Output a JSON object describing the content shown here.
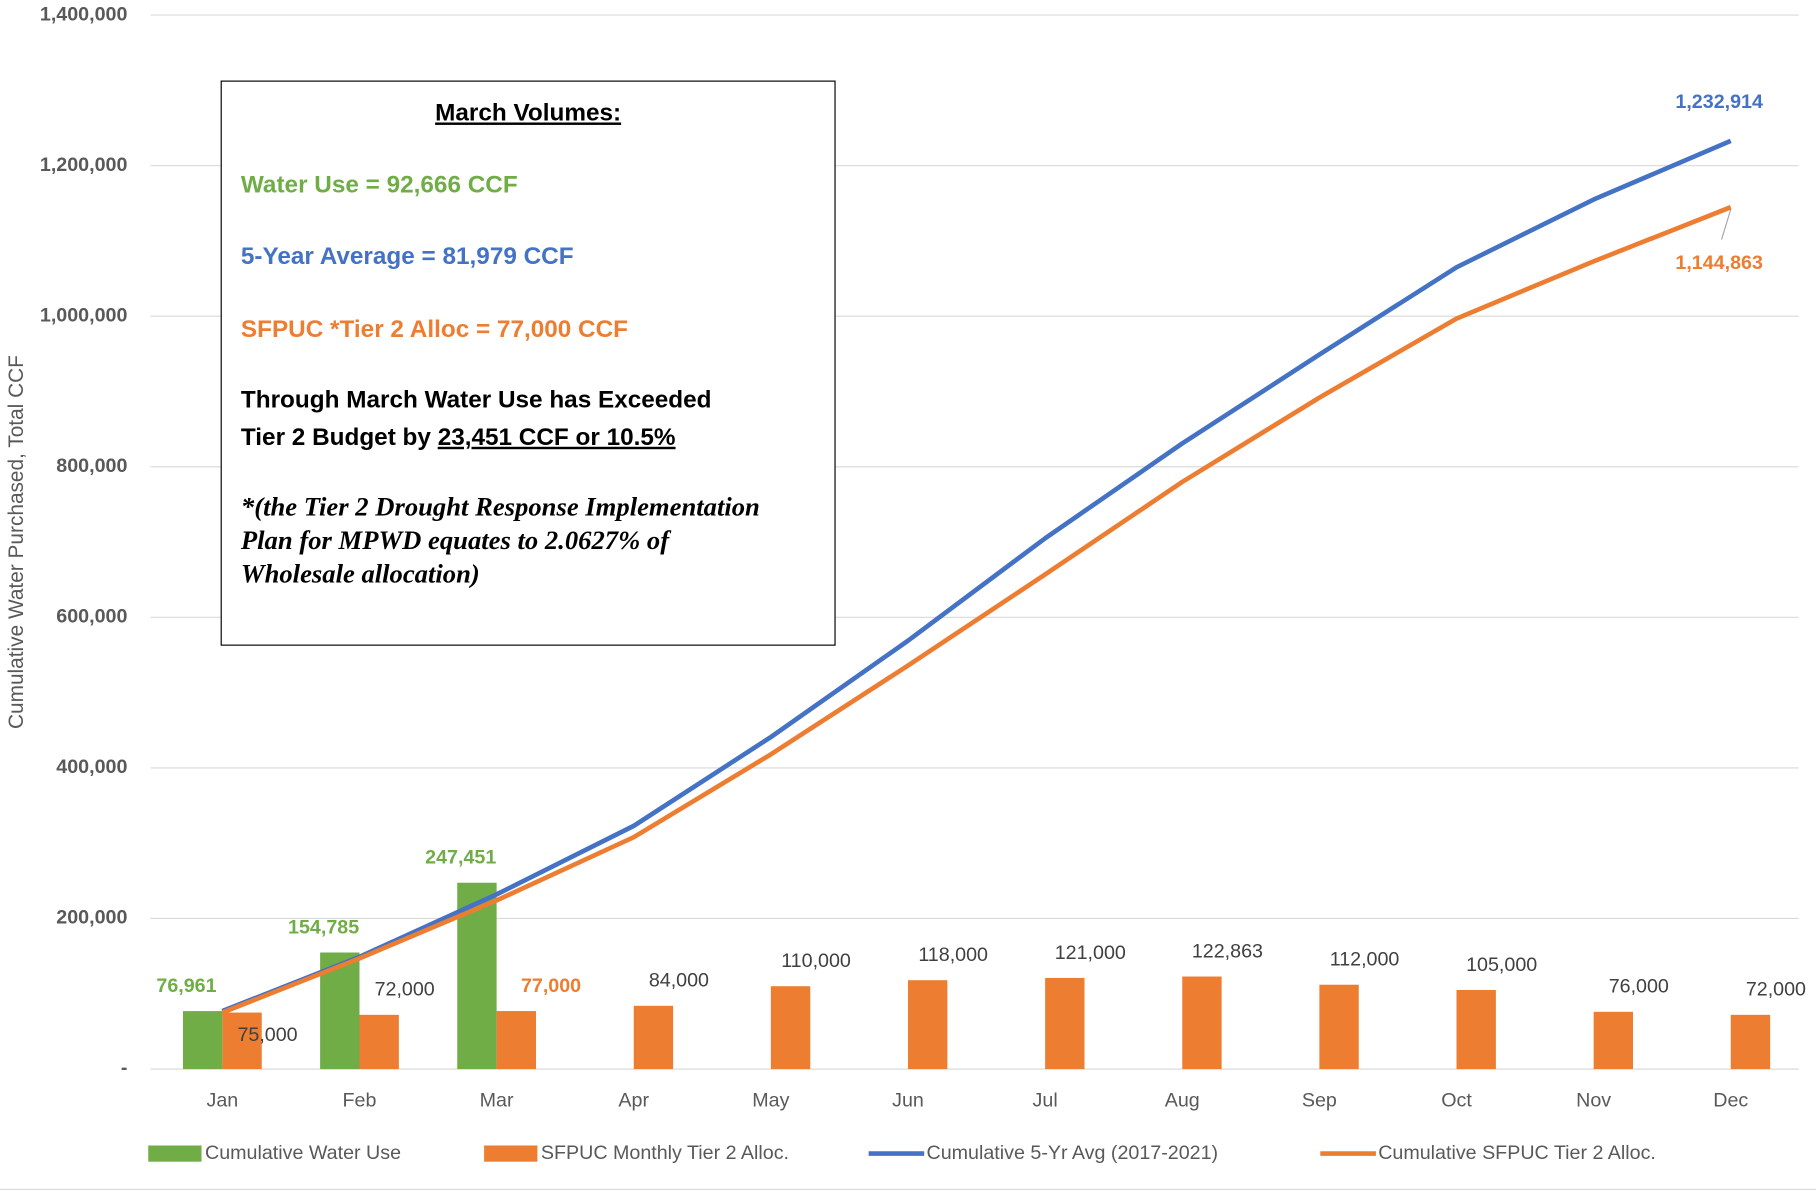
{
  "chart_data": {
    "type": "bar",
    "y_label": "Cumulative Water Purchased, Total CCF",
    "categories": [
      "Jan",
      "Feb",
      "Mar",
      "Apr",
      "May",
      "Jun",
      "Jul",
      "Aug",
      "Sep",
      "Oct",
      "Nov",
      "Dec"
    ],
    "ylim": [
      0,
      1400000
    ],
    "yticks": [
      {
        "value": 0,
        "label": "-"
      },
      {
        "value": 200000,
        "label": "200,000"
      },
      {
        "value": 400000,
        "label": "400,000"
      },
      {
        "value": 600000,
        "label": "600,000"
      },
      {
        "value": 800000,
        "label": "800,000"
      },
      {
        "value": 1000000,
        "label": "1,000,000"
      },
      {
        "value": 1200000,
        "label": "1,200,000"
      },
      {
        "value": 1400000,
        "label": "1,400,000"
      }
    ],
    "grid": true,
    "legend": "bottom",
    "series": [
      {
        "name": "Cumulative Water Use",
        "type": "bar",
        "color": "#70ad47",
        "values": [
          76961,
          154785,
          247451,
          null,
          null,
          null,
          null,
          null,
          null,
          null,
          null,
          null
        ],
        "value_labels": [
          "76,961",
          "154,785",
          "247,451",
          null,
          null,
          null,
          null,
          null,
          null,
          null,
          null,
          null
        ]
      },
      {
        "name": "SFPUC Monthly Tier 2 Alloc.",
        "type": "bar",
        "color": "#ed7d31",
        "values": [
          75000,
          72000,
          77000,
          84000,
          110000,
          118000,
          121000,
          122863,
          112000,
          105000,
          76000,
          72000
        ],
        "value_labels": [
          "75,000",
          "72,000",
          "77,000",
          "84,000",
          "110,000",
          "118,000",
          "121,000",
          "122,863",
          "112,000",
          "105,000",
          "76,000",
          "72,000"
        ]
      },
      {
        "name": "Cumulative 5-Yr Avg (2017-2021)",
        "type": "line",
        "color": "#4472c4",
        "values": [
          77000,
          149000,
          232000,
          323000,
          441000,
          569000,
          705000,
          831000,
          949000,
          1065000,
          1155000,
          1232914
        ],
        "value_labels": [
          null,
          null,
          null,
          null,
          null,
          null,
          null,
          null,
          null,
          null,
          null,
          "1,232,914"
        ]
      },
      {
        "name": "Cumulative SFPUC Tier 2 Alloc.",
        "type": "line",
        "color": "#ed7d31",
        "values": [
          75000,
          147000,
          224000,
          308000,
          418000,
          536000,
          657000,
          779863,
          891863,
          996863,
          1072863,
          1144863
        ],
        "value_labels": [
          null,
          null,
          null,
          null,
          null,
          null,
          null,
          null,
          null,
          null,
          null,
          "1,144,863"
        ]
      }
    ],
    "annotation": {
      "title": "March Volumes:",
      "water_use": "Water Use = 92,666 CCF",
      "average": "5-Year Average = 81,979 CCF",
      "alloc": "SFPUC *Tier 2 Alloc = 77,000 CCF",
      "exceed_line1": "Through March Water Use has Exceeded",
      "exceed_line2": "Tier 2 Budget by ",
      "exceed_amount": "23,451 CCF or 10.5%",
      "note": [
        "*(the Tier 2 Drought Response Implementation",
        "Plan for MPWD equates to 2.0627% of",
        "Wholesale allocation)"
      ]
    }
  }
}
